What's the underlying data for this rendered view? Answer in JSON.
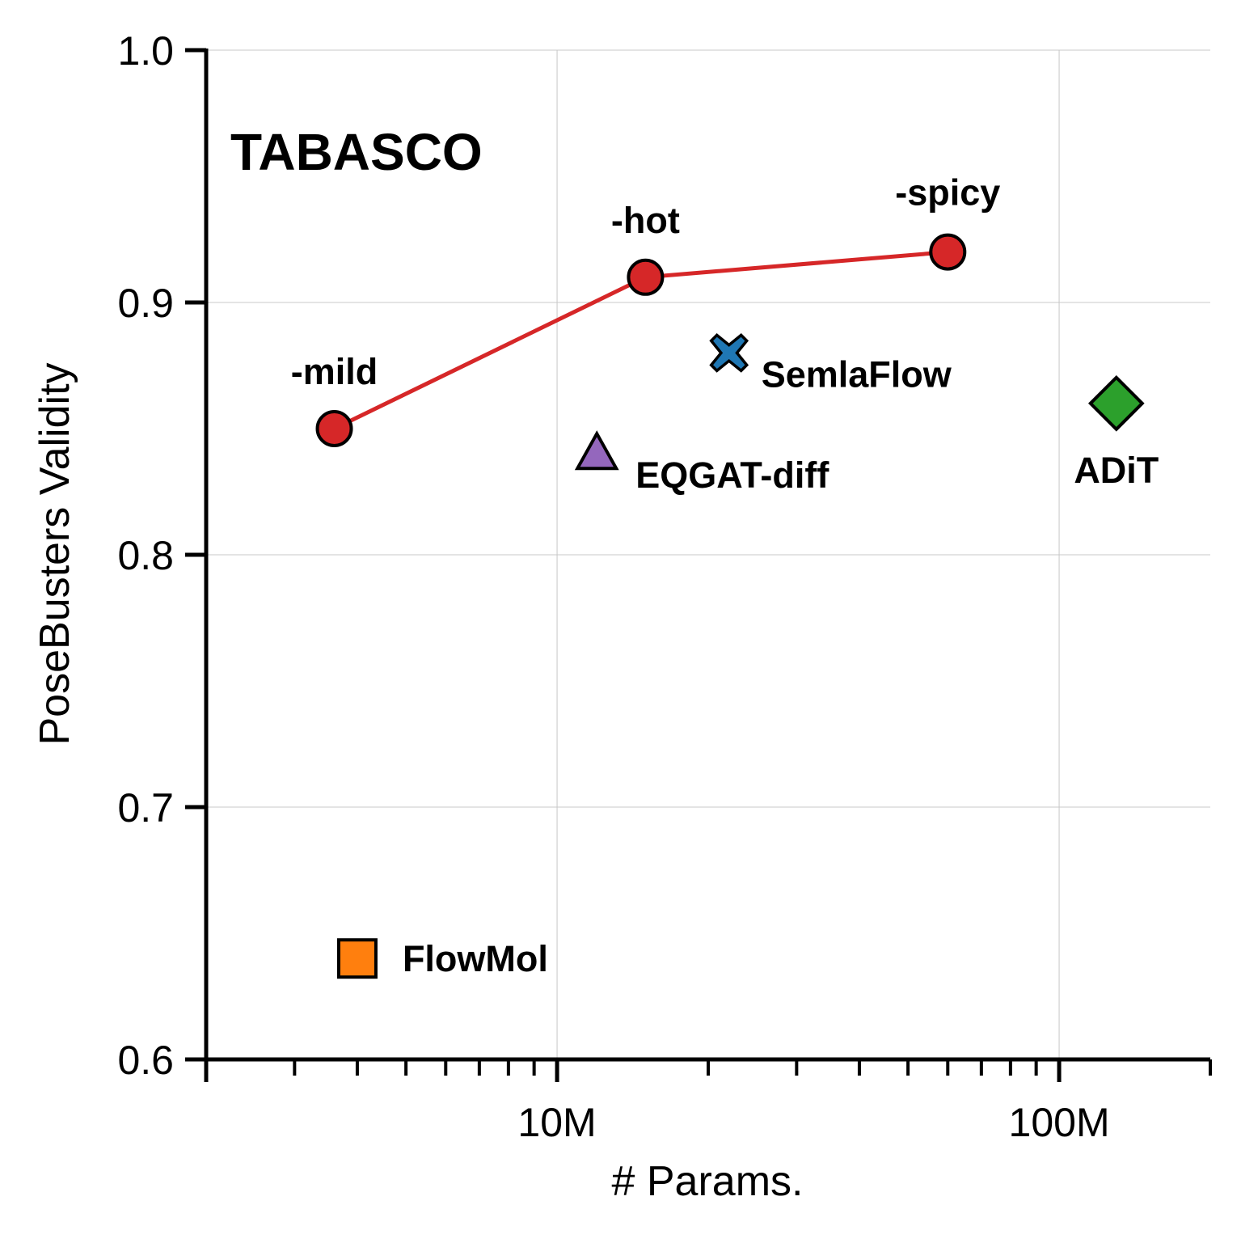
{
  "chart_data": {
    "type": "scatter",
    "xlabel": "# Params.",
    "ylabel": "PoseBusters Validity",
    "xscale": "log",
    "xlim": [
      2000000,
      200000000
    ],
    "ylim": [
      0.6,
      1.0
    ],
    "grid": true,
    "yticks": [
      0.6,
      0.7,
      0.8,
      0.9,
      1.0
    ],
    "ytick_labels": [
      "0.6",
      "0.7",
      "0.8",
      "0.9",
      "1.0"
    ],
    "xticks": [
      10000000,
      100000000
    ],
    "xtick_labels": [
      "10M",
      "100M"
    ],
    "annotation": "TABASCO",
    "series": [
      {
        "name": "TABASCO",
        "marker": "circle",
        "color": "#d62728",
        "connected": true,
        "points": [
          {
            "label": "-mild",
            "x": 3600000,
            "y": 0.85
          },
          {
            "label": "-hot",
            "x": 15000000,
            "y": 0.91
          },
          {
            "label": "-spicy",
            "x": 60000000,
            "y": 0.92
          }
        ]
      },
      {
        "name": "SemlaFlow",
        "marker": "x",
        "color": "#1f77b4",
        "points": [
          {
            "label": "SemlaFlow",
            "x": 22000000,
            "y": 0.88
          }
        ]
      },
      {
        "name": "EQGAT-diff",
        "marker": "triangle",
        "color": "#9467bd",
        "points": [
          {
            "label": "EQGAT-diff",
            "x": 12000000,
            "y": 0.84
          }
        ]
      },
      {
        "name": "ADiT",
        "marker": "diamond",
        "color": "#2ca02c",
        "points": [
          {
            "label": "ADiT",
            "x": 130000000,
            "y": 0.86
          }
        ]
      },
      {
        "name": "FlowMol",
        "marker": "square",
        "color": "#ff7f0e",
        "points": [
          {
            "label": "FlowMol",
            "x": 4000000,
            "y": 0.64
          }
        ]
      }
    ]
  }
}
